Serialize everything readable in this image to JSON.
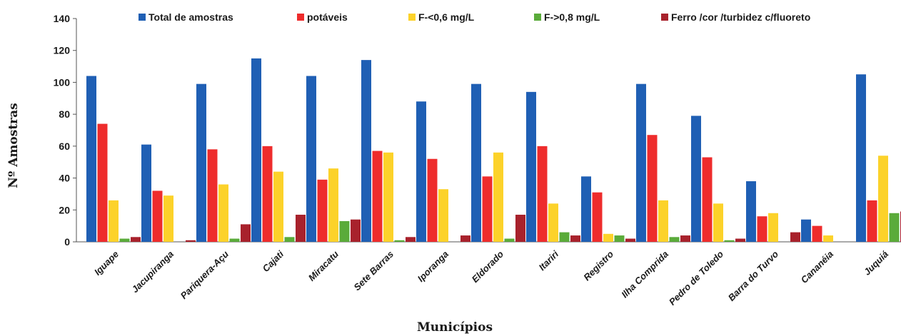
{
  "chart_data": {
    "type": "bar",
    "xlabel": "Municípios",
    "ylabel": "Nº Amostras",
    "ylim": [
      0,
      140
    ],
    "yticks": [
      0,
      20,
      40,
      60,
      80,
      100,
      120,
      140
    ],
    "grid": false,
    "legend_position": "top",
    "categories": [
      "Iguape",
      "Jacupiranga",
      "Pariquera-Açu",
      "Cajati",
      "Miracatu",
      "Sete Barras",
      "Iporanga",
      "Eldorado",
      "Itariri",
      "Registro",
      "Ilha Comprida",
      "Pedro de Toledo",
      "Barra do Turvo",
      "Cananéia",
      "Juquiá"
    ],
    "series": [
      {
        "name": "Total de amostras",
        "color": "#1f5fb4",
        "values": [
          104,
          61,
          99,
          115,
          104,
          114,
          88,
          99,
          94,
          41,
          99,
          79,
          38,
          14,
          105
        ]
      },
      {
        "name": "potáveis",
        "color": "#ee2c2c",
        "values": [
          74,
          32,
          58,
          60,
          39,
          57,
          52,
          41,
          60,
          31,
          67,
          53,
          16,
          10,
          26
        ]
      },
      {
        "name": "F-<0,6 mg/L",
        "color": "#fcd22a",
        "values": [
          26,
          29,
          36,
          44,
          46,
          56,
          33,
          56,
          24,
          5,
          26,
          24,
          18,
          4,
          54
        ]
      },
      {
        "name": "F->0,8 mg/L",
        "color": "#5aab3a",
        "values": [
          2,
          0,
          2,
          3,
          13,
          1,
          0,
          2,
          6,
          4,
          3,
          1,
          0,
          0,
          18
        ]
      },
      {
        "name": "Ferro /cor /turbidez c/fluoreto",
        "color": "#a8222c",
        "values": [
          3,
          1,
          11,
          17,
          14,
          3,
          4,
          17,
          4,
          2,
          4,
          2,
          6,
          0,
          19
        ]
      }
    ]
  }
}
